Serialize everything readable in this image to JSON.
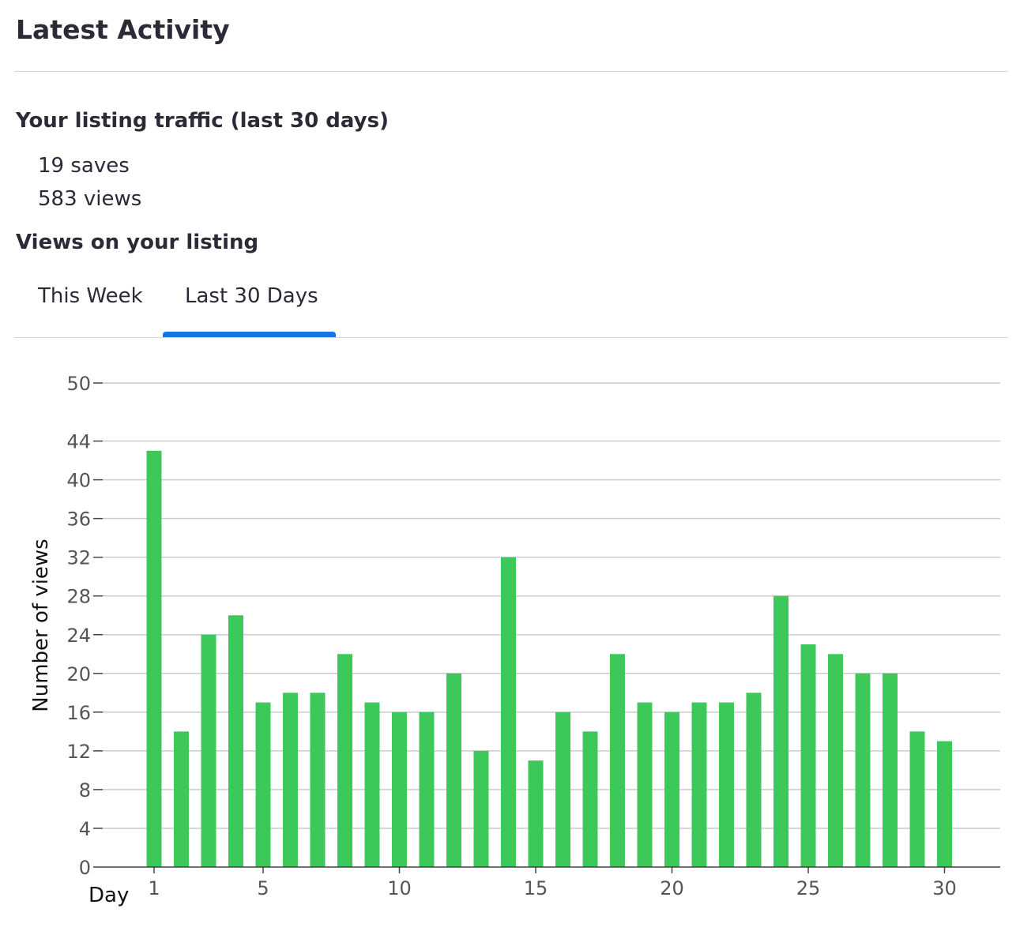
{
  "section": {
    "title": "Latest Activity"
  },
  "traffic": {
    "heading": "Your listing traffic (last 30 days)",
    "saves": "19 saves",
    "views": "583 views"
  },
  "views_section": {
    "heading": "Views on your listing"
  },
  "tabs": [
    {
      "label": "This Week",
      "active": false
    },
    {
      "label": "Last 30 Days",
      "active": true
    }
  ],
  "colors": {
    "bar": "#3cc95a",
    "tab_active": "#1a73e8",
    "grid": "#cccccc"
  },
  "chart_data": {
    "type": "bar",
    "xlabel": "Day",
    "ylabel": "Number of views",
    "x": [
      1,
      2,
      3,
      4,
      5,
      6,
      7,
      8,
      9,
      10,
      11,
      12,
      13,
      14,
      15,
      16,
      17,
      18,
      19,
      20,
      21,
      22,
      23,
      24,
      25,
      26,
      27,
      28,
      29,
      30
    ],
    "values": [
      43,
      14,
      24,
      26,
      17,
      18,
      18,
      22,
      17,
      16,
      16,
      20,
      12,
      32,
      11,
      16,
      14,
      22,
      17,
      16,
      17,
      17,
      18,
      28,
      23,
      22,
      20,
      20,
      14,
      13
    ],
    "x_ticks": [
      1,
      5,
      10,
      15,
      20,
      25,
      30
    ],
    "y_ticks": [
      0,
      4,
      8,
      12,
      16,
      20,
      24,
      28,
      32,
      36,
      40,
      44,
      50
    ],
    "ylim": [
      0,
      50
    ],
    "grid": true
  }
}
